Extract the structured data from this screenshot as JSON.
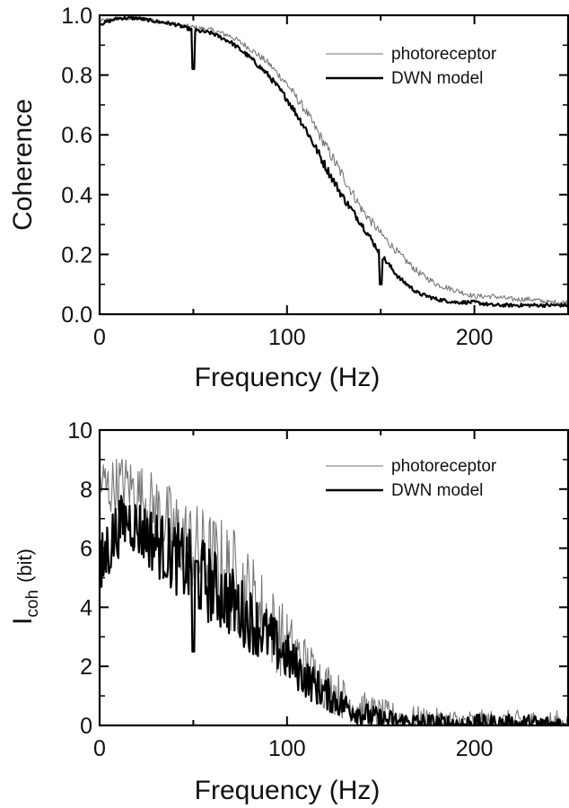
{
  "chart_data": [
    {
      "type": "line",
      "panel": "top",
      "xlabel": "Frequency (Hz)",
      "ylabel": "Coherence",
      "xlim": [
        0,
        250
      ],
      "ylim": [
        0,
        1.0
      ],
      "xticks": [
        0,
        100,
        200
      ],
      "yticks": [
        0.0,
        0.2,
        0.4,
        0.6,
        0.8,
        1.0
      ],
      "ytick_labels": [
        "0.0",
        "0.2",
        "0.4",
        "0.6",
        "0.8",
        "1.0"
      ],
      "legend_position": "top-right",
      "grid": false,
      "series": [
        {
          "name": "photoreceptor",
          "color": "#777777",
          "x": [
            0,
            10,
            20,
            30,
            40,
            50,
            60,
            70,
            80,
            90,
            100,
            110,
            120,
            130,
            140,
            150,
            160,
            170,
            180,
            190,
            200,
            210,
            220,
            230,
            240,
            250
          ],
          "y": [
            0.98,
            0.99,
            0.99,
            0.98,
            0.97,
            0.96,
            0.95,
            0.93,
            0.89,
            0.84,
            0.77,
            0.68,
            0.57,
            0.46,
            0.35,
            0.27,
            0.2,
            0.14,
            0.1,
            0.08,
            0.06,
            0.06,
            0.05,
            0.05,
            0.04,
            0.04
          ]
        },
        {
          "name": "DWN model",
          "color": "#000000",
          "x": [
            0,
            10,
            20,
            30,
            40,
            50,
            60,
            70,
            80,
            90,
            100,
            110,
            120,
            130,
            140,
            150,
            160,
            170,
            180,
            190,
            200,
            210,
            220,
            230,
            240,
            250
          ],
          "y": [
            0.97,
            0.99,
            0.99,
            0.98,
            0.97,
            0.95,
            0.94,
            0.91,
            0.86,
            0.8,
            0.72,
            0.62,
            0.5,
            0.39,
            0.3,
            0.2,
            0.12,
            0.07,
            0.05,
            0.04,
            0.04,
            0.03,
            0.03,
            0.03,
            0.03,
            0.03
          ],
          "dips": [
            {
              "x": 50,
              "y": 0.82
            },
            {
              "x": 150,
              "y": 0.1
            }
          ]
        }
      ]
    },
    {
      "type": "line",
      "panel": "bottom",
      "xlabel": "Frequency (Hz)",
      "ylabel_main": "I",
      "ylabel_sub": "coh",
      "ylabel_unit": "(bit)",
      "xlim": [
        0,
        250
      ],
      "ylim": [
        0,
        10
      ],
      "xticks": [
        0,
        100,
        200
      ],
      "yticks": [
        0,
        2,
        4,
        6,
        8,
        10
      ],
      "ytick_labels": [
        "0",
        "2",
        "4",
        "6",
        "8",
        "10"
      ],
      "legend_position": "top-right",
      "grid": false,
      "series": [
        {
          "name": "photoreceptor",
          "color": "#777777",
          "x": [
            0,
            5,
            10,
            15,
            20,
            30,
            40,
            50,
            60,
            70,
            80,
            90,
            100,
            110,
            120,
            130,
            140,
            150,
            160,
            170,
            180,
            190,
            200,
            210,
            220,
            230,
            240,
            250
          ],
          "y": [
            8.3,
            8.0,
            8.2,
            8.2,
            7.9,
            7.3,
            6.6,
            6.0,
            5.5,
            5.0,
            4.3,
            3.5,
            2.7,
            2.0,
            1.4,
            0.9,
            0.55,
            0.35,
            0.22,
            0.15,
            0.1,
            0.08,
            0.06,
            0.05,
            0.05,
            0.05,
            0.04,
            0.04
          ]
        },
        {
          "name": "DWN model",
          "color": "#000000",
          "x": [
            0,
            3,
            6,
            10,
            15,
            20,
            30,
            40,
            50,
            60,
            70,
            80,
            90,
            100,
            110,
            120,
            130,
            140,
            150,
            160,
            170,
            180,
            190,
            200,
            210,
            220,
            230,
            240,
            250
          ],
          "y": [
            4.8,
            5.8,
            6.2,
            6.7,
            7.0,
            6.7,
            6.2,
            5.7,
            5.2,
            4.7,
            4.2,
            3.6,
            3.0,
            2.3,
            1.6,
            1.1,
            0.7,
            0.4,
            0.2,
            0.12,
            0.08,
            0.05,
            0.04,
            0.03,
            0.03,
            0.03,
            0.03,
            0.02,
            0.02
          ],
          "dips": [
            {
              "x": 50,
              "y": 2.5
            }
          ]
        }
      ]
    }
  ]
}
